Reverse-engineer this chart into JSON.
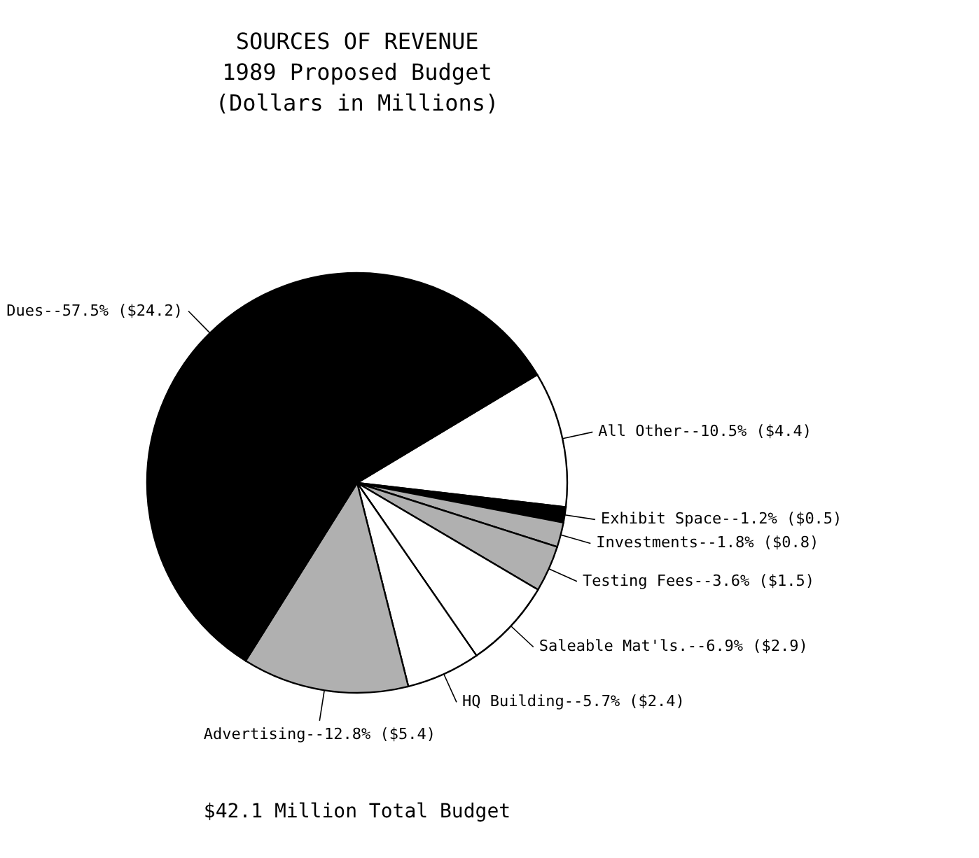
{
  "chart_data": {
    "type": "pie",
    "title": "SOURCES OF REVENUE",
    "subtitle": "1989 Proposed Budget\n(Dollars in Millions)",
    "categories": [
      "All Other--10.5%",
      "Exhibit Space--1.2%",
      "Investments--1.8%",
      "Testing Fees--3.6%",
      "Saleable Mat'ls.--6.9%",
      "HQ Building--5.7%",
      "Advertising--12.8%",
      "Dues--57.5%"
    ],
    "values": [
      4.4,
      0.5,
      0.8,
      1.5,
      2.9,
      2.4,
      5.4,
      24.2
    ],
    "value_labels": [
      "($4.4)",
      "($0.5)",
      "($0.8)",
      "($1.5)",
      "($2.9)",
      "($2.4)",
      "($5.4)",
      "($24.2)"
    ],
    "colors": [
      "#ffffff",
      "#000000",
      "#b0b0b0",
      "#b0b0b0",
      "#ffffff",
      "#ffffff",
      "#b0b0b0",
      "#000000"
    ],
    "annotations": [
      "$42.1 Million Total Budget"
    ]
  }
}
